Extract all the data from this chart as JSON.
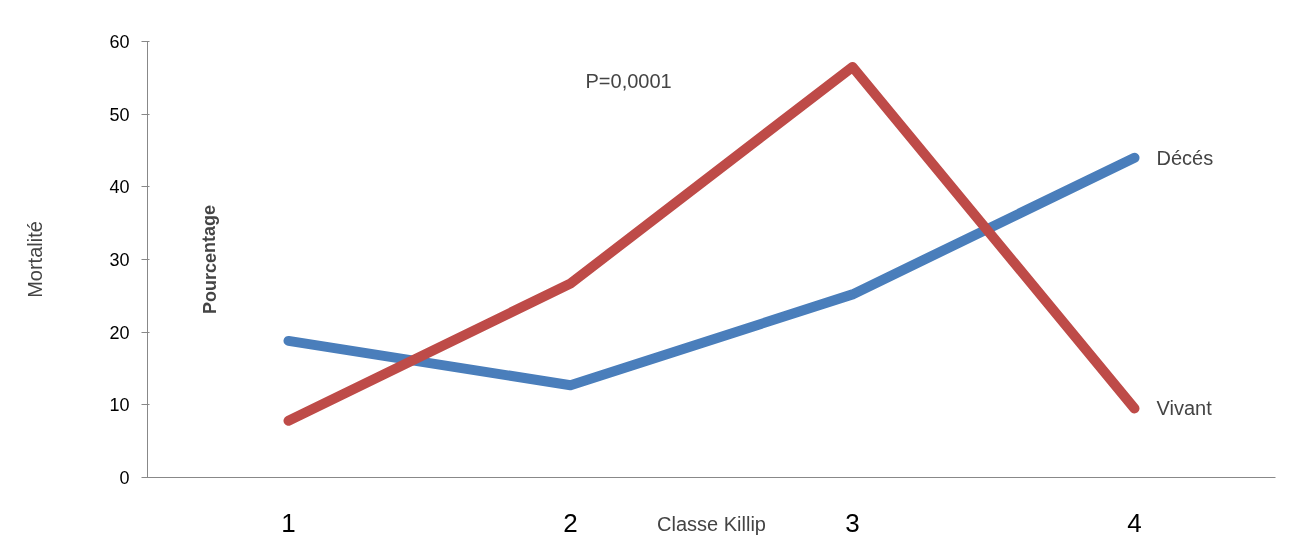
{
  "chart_data": {
    "type": "line",
    "ylabel": "Mortalité",
    "xlabel": "Classe Killip",
    "categories": [
      "1",
      "2",
      "3",
      "4"
    ],
    "series": [
      {
        "name": "Décés",
        "color": "#4a7ebb",
        "values": [
          18.8,
          12.7,
          25.2,
          44
        ]
      },
      {
        "name": "Vivant",
        "color": "#be4b48",
        "values": [
          7.8,
          26.7,
          56.5,
          9.5
        ]
      }
    ],
    "ylim": [
      0,
      60
    ],
    "yticks": [
      0,
      10,
      20,
      30,
      40,
      50,
      60
    ],
    "grid": false,
    "marker": "none",
    "line_style": "solid",
    "annotations": [
      "P=0,0001",
      "Pourcentage"
    ]
  }
}
